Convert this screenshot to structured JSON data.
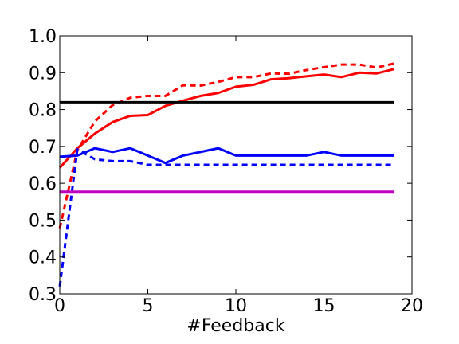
{
  "chart_data": {
    "type": "line",
    "xlabel": "#Feedback",
    "ylabel": "",
    "xlim": [
      0,
      20
    ],
    "ylim": [
      0.3,
      1.0
    ],
    "xticks": [
      0,
      5,
      10,
      15,
      20
    ],
    "xtick_labels": [
      "0",
      "5",
      "10",
      "15",
      "20"
    ],
    "yticks": [
      0.3,
      0.4,
      0.5,
      0.6,
      0.7,
      0.8,
      0.9,
      1.0
    ],
    "ytick_labels": [
      "0.3",
      "0.4",
      "0.5",
      "0.6",
      "0.7",
      "0.8",
      "0.9",
      "1.0"
    ],
    "grid": false,
    "legend": "none",
    "series": [
      {
        "color": "#ff0000",
        "style": "solid",
        "x": [
          0,
          1,
          2,
          3,
          4,
          5,
          6,
          7,
          8,
          9,
          10,
          11,
          12,
          13,
          14,
          15,
          16,
          17,
          18,
          19
        ],
        "y": [
          0.642,
          0.695,
          0.735,
          0.766,
          0.783,
          0.785,
          0.81,
          0.824,
          0.837,
          0.845,
          0.862,
          0.867,
          0.882,
          0.885,
          0.89,
          0.895,
          0.888,
          0.9,
          0.898,
          0.91
        ]
      },
      {
        "color": "#ff0000",
        "style": "dashed",
        "x": [
          0,
          1,
          2,
          3,
          4,
          5,
          6,
          7,
          8,
          9,
          10,
          11,
          12,
          13,
          14,
          15,
          16,
          17,
          18,
          19
        ],
        "y": [
          0.478,
          0.69,
          0.768,
          0.812,
          0.832,
          0.837,
          0.837,
          0.866,
          0.865,
          0.875,
          0.888,
          0.888,
          0.898,
          0.897,
          0.907,
          0.915,
          0.922,
          0.922,
          0.914,
          0.925
        ]
      },
      {
        "color": "#0000ff",
        "style": "solid",
        "x": [
          0,
          1,
          2,
          3,
          4,
          5,
          6,
          7,
          8,
          9,
          10,
          11,
          12,
          13,
          14,
          15,
          16,
          17,
          18,
          19
        ],
        "y": [
          0.672,
          0.675,
          0.695,
          0.685,
          0.695,
          0.675,
          0.655,
          0.675,
          0.685,
          0.695,
          0.675,
          0.675,
          0.675,
          0.675,
          0.675,
          0.685,
          0.675,
          0.675,
          0.675,
          0.675
        ]
      },
      {
        "color": "#0000ff",
        "style": "dashed",
        "x": [
          0,
          1,
          2,
          3,
          4,
          5,
          6,
          7,
          8,
          9,
          10,
          11,
          12,
          13,
          14,
          15,
          16,
          17,
          18,
          19
        ],
        "y": [
          0.32,
          0.692,
          0.665,
          0.66,
          0.66,
          0.65,
          0.65,
          0.65,
          0.65,
          0.65,
          0.65,
          0.65,
          0.65,
          0.65,
          0.65,
          0.65,
          0.65,
          0.65,
          0.65,
          0.65
        ]
      },
      {
        "color": "#000000",
        "style": "solid",
        "x": [
          0,
          19
        ],
        "y": [
          0.82,
          0.82
        ]
      },
      {
        "color": "#bf00bf",
        "style": "solid",
        "x": [
          0,
          19
        ],
        "y": [
          0.577,
          0.577
        ]
      }
    ]
  }
}
